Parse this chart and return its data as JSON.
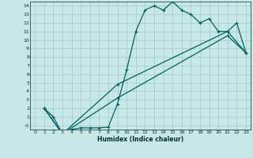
{
  "xlabel": "Humidex (Indice chaleur)",
  "bg_color": "#c8e8e8",
  "grid_color": "#a0c8c8",
  "line_color": "#006060",
  "xlim": [
    -0.5,
    23.5
  ],
  "ylim": [
    -0.5,
    14.5
  ],
  "xticks": [
    0,
    1,
    2,
    3,
    4,
    5,
    6,
    7,
    8,
    9,
    10,
    11,
    12,
    13,
    14,
    15,
    16,
    17,
    18,
    19,
    20,
    21,
    22,
    23
  ],
  "yticks": [
    0,
    1,
    2,
    3,
    4,
    5,
    6,
    7,
    8,
    9,
    10,
    11,
    12,
    13,
    14
  ],
  "ytick_labels": [
    "-0",
    "1",
    "2",
    "3",
    "4",
    "5",
    "6",
    "7",
    "8",
    "9",
    "10",
    "11",
    "12",
    "13",
    "14"
  ],
  "line1_x": [
    1,
    2,
    3,
    4,
    5,
    6,
    7,
    8,
    9,
    10,
    11,
    12,
    13,
    14,
    15,
    16,
    17,
    18,
    19,
    20,
    21,
    22,
    23
  ],
  "line1_y": [
    2,
    1,
    -1,
    -0.5,
    -0.3,
    -0.3,
    -0.3,
    -0.2,
    2.5,
    6.5,
    11,
    13.5,
    14,
    13.5,
    14.5,
    13.5,
    13,
    12,
    12.5,
    11,
    11,
    12,
    8.5
  ],
  "line2_x": [
    1,
    3,
    9,
    21,
    23
  ],
  "line2_y": [
    2,
    -1,
    4.8,
    11,
    8.5
  ],
  "line3_x": [
    1,
    3,
    9,
    21,
    23
  ],
  "line3_y": [
    2,
    -1,
    3.2,
    10.5,
    8.5
  ]
}
